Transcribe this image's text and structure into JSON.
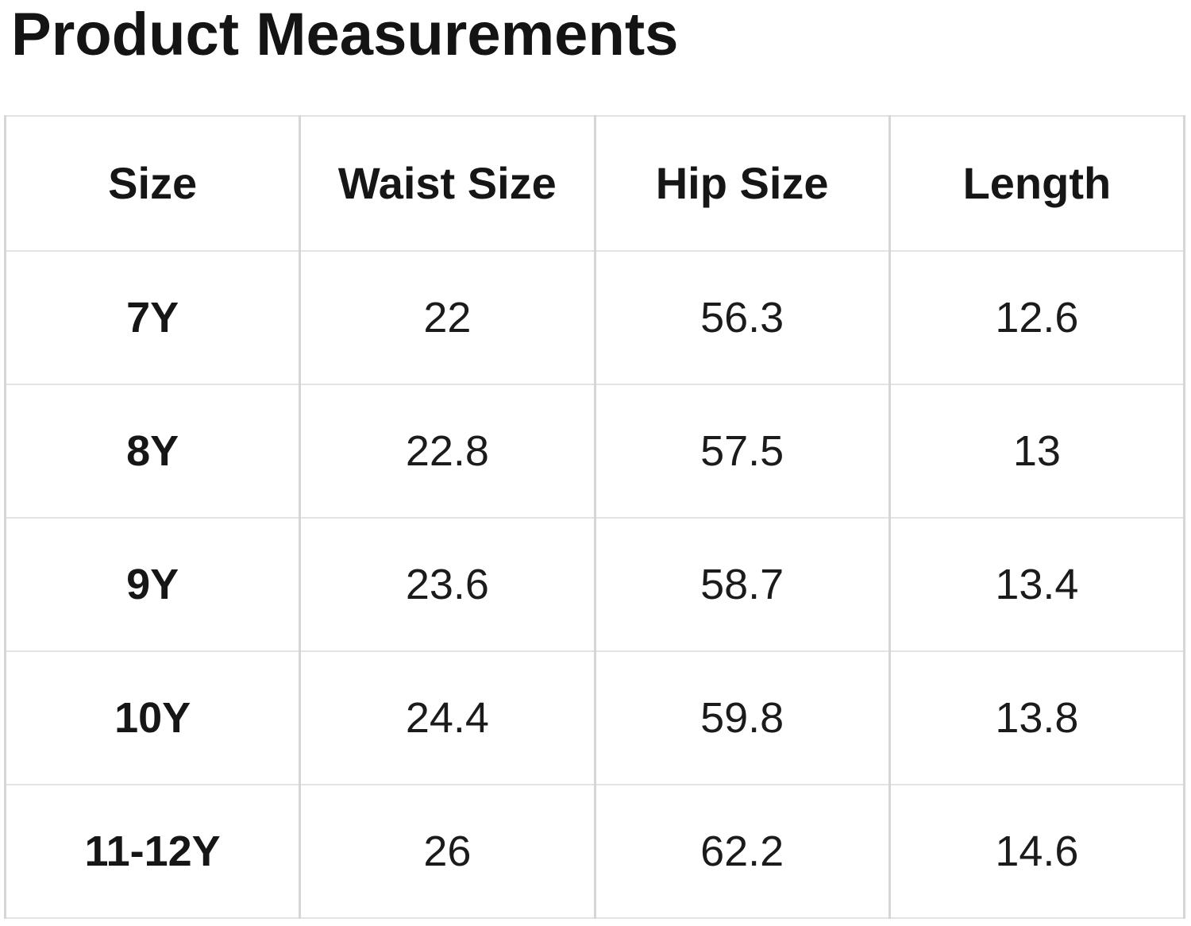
{
  "title": "Product Measurements",
  "chart_data": {
    "type": "table",
    "title": "Product Measurements",
    "columns": [
      "Size",
      "Waist Size",
      "Hip Size",
      "Length"
    ],
    "rows": [
      [
        "7Y",
        "22",
        "56.3",
        "12.6"
      ],
      [
        "8Y",
        "22.8",
        "57.5",
        "13"
      ],
      [
        "9Y",
        "23.6",
        "58.7",
        "13.4"
      ],
      [
        "10Y",
        "24.4",
        "59.8",
        "13.8"
      ],
      [
        "11-12Y",
        "26",
        "62.2",
        "14.6"
      ]
    ]
  },
  "colors": {
    "background": "#ffffff",
    "text": "#151515",
    "border_vertical": "#d6d6d6",
    "border_horizontal": "#e3e3e3"
  }
}
